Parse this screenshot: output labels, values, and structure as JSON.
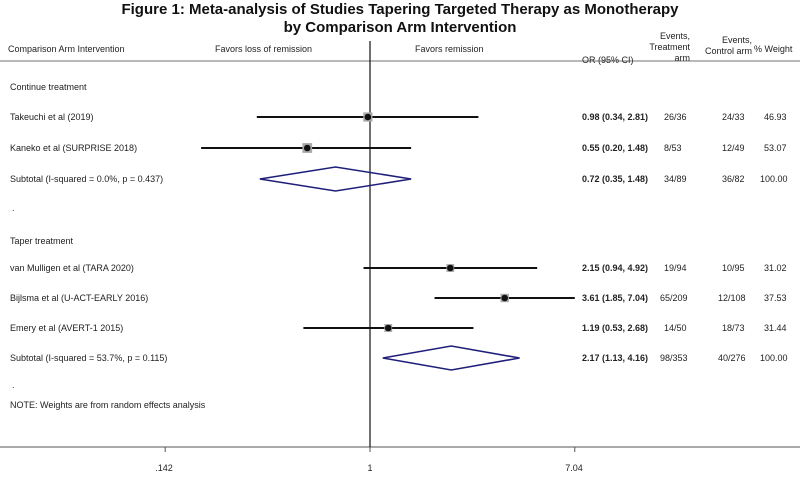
{
  "title_line1": "Figure 1: Meta-analysis of Studies Tapering Targeted Therapy as Monotherapy",
  "title_line2": "by Comparison Arm Intervention",
  "headers": {
    "study": "Comparison Arm Intervention",
    "favors_left": "Favors loss of remission",
    "favors_right": "Favors remission",
    "or_ci": "OR (95% CI)",
    "events_treat": "Events, Treatment arm",
    "events_ctrl": "Events, Control arm",
    "weight": "% Weight"
  },
  "groups": {
    "continue": "Continue treatment",
    "taper": "Taper treatment"
  },
  "continue_rows": [
    {
      "study": "Takeuchi et al (2019)",
      "or_text": "0.98 (0.34, 2.81)",
      "treat": "26/36",
      "ctrl": "24/33",
      "weight": "46.93"
    },
    {
      "study": "Kaneko et al (SURPRISE 2018)",
      "or_text": "0.55 (0.20, 1.48)",
      "treat": "8/53",
      "ctrl": "12/49",
      "weight": "53.07"
    },
    {
      "study": "Subtotal  (I-squared = 0.0%, p = 0.437)",
      "or_text": "0.72 (0.35, 1.48)",
      "treat": "34/89",
      "ctrl": "36/82",
      "weight": "100.00"
    }
  ],
  "dot_separator": ".",
  "taper_rows": [
    {
      "study": "van Mulligen et al (TARA 2020)",
      "or_text": "2.15 (0.94, 4.92)",
      "treat": "19/94",
      "ctrl": "10/95",
      "weight": "31.02"
    },
    {
      "study": "Bijlsma et al (U-ACT-EARLY 2016)",
      "or_text": "3.61 (1.85, 7.04)",
      "treat": "65/209",
      "ctrl": "12/108",
      "weight": "37.53"
    },
    {
      "study": "Emery et al (AVERT-1 2015)",
      "or_text": "1.19 (0.53, 2.68)",
      "treat": "14/50",
      "ctrl": "18/73",
      "weight": "31.44"
    },
    {
      "study": "Subtotal  (I-squared = 53.7%, p = 0.115)",
      "or_text": "2.17 (1.13, 4.16)",
      "treat": "98/353",
      "ctrl": "40/276",
      "weight": "100.00"
    }
  ],
  "note": "NOTE: Weights are from random effects analysis",
  "colors": {
    "diamond": "#1f1f7a",
    "line": "#111111",
    "square": "#a9a9a9"
  },
  "chart_data": {
    "type": "forest",
    "x_scale": "log",
    "xlim": [
      0.142,
      7.04
    ],
    "reference_line": 1,
    "x_ticks": [
      0.142,
      1,
      7.04
    ],
    "x_tick_labels": [
      ".142",
      "1",
      "7.04"
    ],
    "studies": [
      {
        "name": "Takeuchi et al (2019)",
        "group": "Continue treatment",
        "or": 0.98,
        "lo": 0.34,
        "hi": 2.81,
        "weight": 46.93
      },
      {
        "name": "Kaneko et al (SURPRISE 2018)",
        "group": "Continue treatment",
        "or": 0.55,
        "lo": 0.2,
        "hi": 1.48,
        "weight": 53.07
      },
      {
        "name": "van Mulligen et al (TARA 2020)",
        "group": "Taper treatment",
        "or": 2.15,
        "lo": 0.94,
        "hi": 4.92,
        "weight": 31.02
      },
      {
        "name": "Bijlsma et al (U-ACT-EARLY 2016)",
        "group": "Taper treatment",
        "or": 3.61,
        "lo": 1.85,
        "hi": 7.04,
        "weight": 37.53
      },
      {
        "name": "Emery et al (AVERT-1 2015)",
        "group": "Taper treatment",
        "or": 1.19,
        "lo": 0.53,
        "hi": 2.68,
        "weight": 31.44
      }
    ],
    "subtotals": [
      {
        "group": "Continue treatment",
        "or": 0.72,
        "lo": 0.35,
        "hi": 1.48
      },
      {
        "group": "Taper treatment",
        "or": 2.17,
        "lo": 1.13,
        "hi": 4.16
      }
    ]
  }
}
